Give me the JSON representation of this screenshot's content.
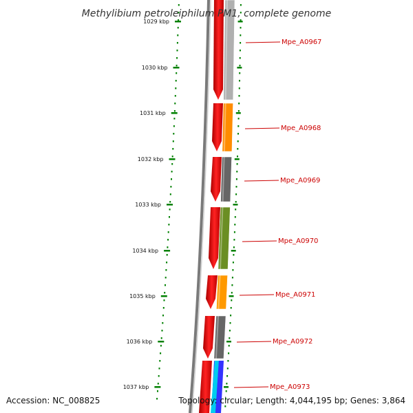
{
  "title": "Methylibium petroleiphilum PM1, complete genome",
  "footer": {
    "accession": "Accession: NC_008825",
    "summary": "Topology: circular; Length: 4,044,195 bp; Genes: 3,864"
  },
  "ticks": [
    "1029 kbp",
    "1030 kbp",
    "1031 kbp",
    "1032 kbp",
    "1033 kbp",
    "1034 kbp",
    "1035 kbp",
    "1036 kbp",
    "1037 kbp"
  ],
  "genes": [
    {
      "label": "Mpe_A0967",
      "color": "#b0b0b0"
    },
    {
      "label": "Mpe_A0968",
      "color": "#ff8c00"
    },
    {
      "label": "Mpe_A0969",
      "color": "#666666"
    },
    {
      "label": "Mpe_A0970",
      "color": "#6b8e23"
    },
    {
      "label": "Mpe_A0971",
      "color": "#ff9900"
    },
    {
      "label": "Mpe_A0972",
      "color": "#666666"
    },
    {
      "label": "Mpe_A0973",
      "color": "#3333ff"
    }
  ],
  "colors": {
    "cds_strand": "#ee0000",
    "tick_mark": "#008000",
    "label_text": "#cc0000",
    "backbone": "#808080"
  }
}
